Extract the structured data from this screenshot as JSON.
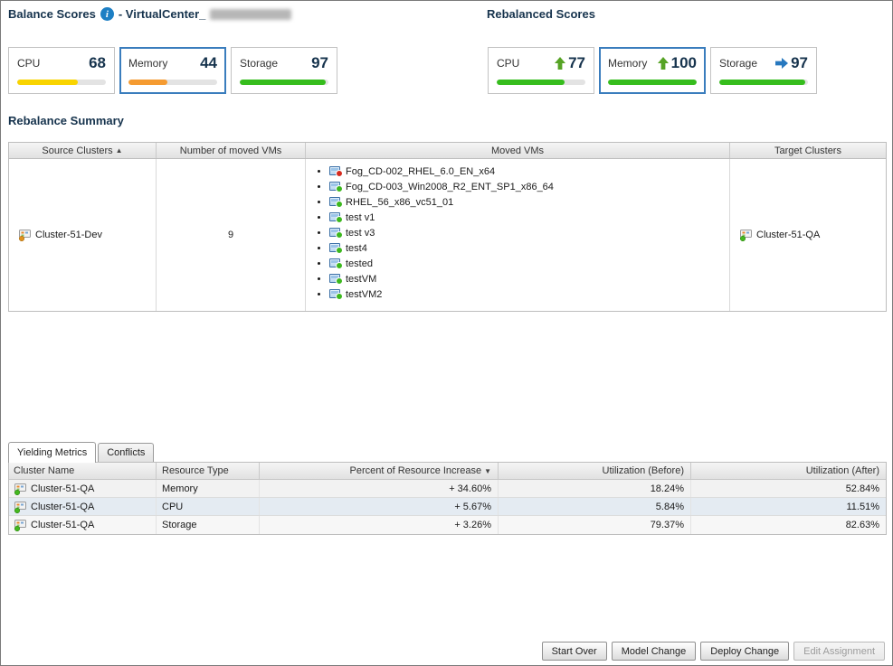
{
  "colors": {
    "accent": "#3a7dbd",
    "heading": "#16334d",
    "info-blue": "#1d7fc4",
    "bar-track": "#e3e3e3",
    "bar-yellow": "#f9d400",
    "bar-orange": "#f59b31",
    "bar-green": "#36bd1d",
    "arrow-up-green": "#56a325",
    "arrow-right-blue": "#2778bf",
    "status-green": "#3cb81e",
    "status-red": "#d62a1e"
  },
  "icons": {
    "info": "i",
    "sort_asc": "▲",
    "sort_desc": "▼"
  },
  "header": {
    "title": "Balance Scores",
    "vcenter_label": "- VirtualCenter_",
    "rebalanced_title": "Rebalanced Scores"
  },
  "balance": {
    "cards": [
      {
        "label": "CPU",
        "value": 68
      },
      {
        "label": "Memory",
        "value": 44
      },
      {
        "label": "Storage",
        "value": 97
      }
    ]
  },
  "rebalanced": {
    "cards": [
      {
        "label": "CPU",
        "value": 77,
        "trend": "up"
      },
      {
        "label": "Memory",
        "value": 100,
        "trend": "up"
      },
      {
        "label": "Storage",
        "value": 97,
        "trend": "same"
      }
    ]
  },
  "summary": {
    "title": "Rebalance Summary",
    "columns": [
      "Source Clusters",
      "Number of moved VMs",
      "Moved VMs",
      "Target Clusters"
    ],
    "row": {
      "source_cluster": "Cluster-51-Dev",
      "moved_count": "9",
      "moved_vms": [
        {
          "name": "Fog_CD-002_RHEL_6.0_EN_x64",
          "status": "error"
        },
        {
          "name": "Fog_CD-003_Win2008_R2_ENT_SP1_x86_64",
          "status": "on"
        },
        {
          "name": "RHEL_56_x86_vc51_01",
          "status": "on"
        },
        {
          "name": "test v1",
          "status": "on"
        },
        {
          "name": "test v3",
          "status": "on"
        },
        {
          "name": "test4",
          "status": "on"
        },
        {
          "name": "tested",
          "status": "on"
        },
        {
          "name": "testVM",
          "status": "on"
        },
        {
          "name": "testVM2",
          "status": "on"
        }
      ],
      "target_cluster": "Cluster-51-QA"
    }
  },
  "tabs": [
    {
      "label": "Yielding Metrics",
      "active": true
    },
    {
      "label": "Conflicts",
      "active": false
    }
  ],
  "metrics": {
    "columns": [
      "Cluster Name",
      "Resource Type",
      "Percent of Resource Increase",
      "Utilization (Before)",
      "Utilization (After)"
    ],
    "rows": [
      {
        "cluster": "Cluster-51-QA",
        "resource": "Memory",
        "increase": "+ 34.60%",
        "before": "18.24%",
        "after": "52.84%"
      },
      {
        "cluster": "Cluster-51-QA",
        "resource": "CPU",
        "increase": "+ 5.67%",
        "before": "5.84%",
        "after": "11.51%"
      },
      {
        "cluster": "Cluster-51-QA",
        "resource": "Storage",
        "increase": "+ 3.26%",
        "before": "79.37%",
        "after": "82.63%"
      }
    ]
  },
  "footer": {
    "buttons": [
      {
        "label": "Start Over",
        "enabled": true
      },
      {
        "label": "Model Change",
        "enabled": true
      },
      {
        "label": "Deploy Change",
        "enabled": true
      },
      {
        "label": "Edit Assignment",
        "enabled": false
      }
    ]
  }
}
